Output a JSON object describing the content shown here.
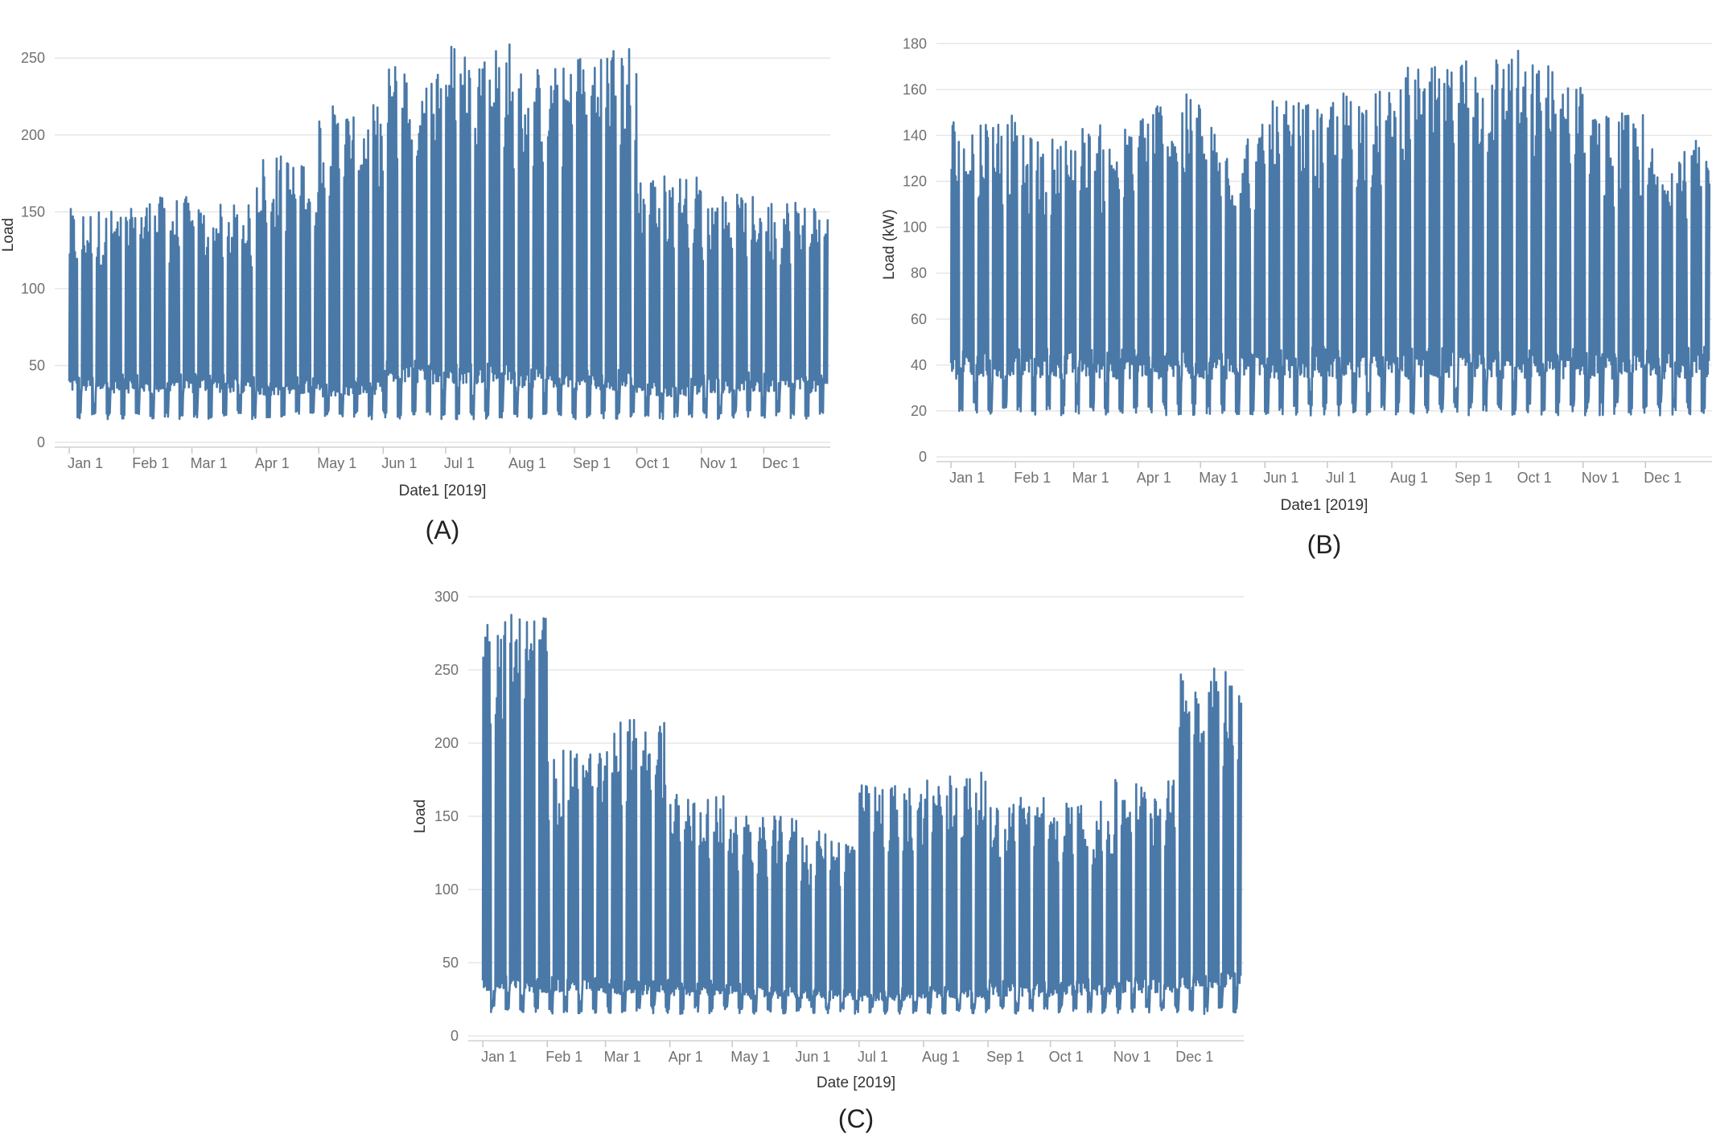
{
  "line_color": "#4a79a8",
  "grid_color": "#e6e6e6",
  "tick_text_color": "#707070",
  "axis_title_color": "#333333",
  "chart_data": [
    {
      "type": "line",
      "panel_label": "(A)",
      "xlabel": "Date1 [2019]",
      "ylabel": "Load",
      "ylim": [
        0,
        270
      ],
      "yticks": [
        0,
        50,
        100,
        150,
        200,
        250
      ],
      "xlim": [
        "2018-12-25",
        "2020-01-02"
      ],
      "xticks": [
        {
          "date": "2019-01-01",
          "label": "Jan 1"
        },
        {
          "date": "2019-02-01",
          "label": "Feb 1"
        },
        {
          "date": "2019-03-01",
          "label": "Mar 1"
        },
        {
          "date": "2019-04-01",
          "label": "Apr 1"
        },
        {
          "date": "2019-05-01",
          "label": "May 1"
        },
        {
          "date": "2019-06-01",
          "label": "Jun 1"
        },
        {
          "date": "2019-07-01",
          "label": "Jul 1"
        },
        {
          "date": "2019-08-01",
          "label": "Aug 1"
        },
        {
          "date": "2019-09-01",
          "label": "Sep 1"
        },
        {
          "date": "2019-10-01",
          "label": "Oct 1"
        },
        {
          "date": "2019-11-01",
          "label": "Nov 1"
        },
        {
          "date": "2019-12-01",
          "label": "Dec 1"
        }
      ],
      "grid": true,
      "series": [
        {
          "monthly_peak": [
            152,
            160,
            155,
            188,
            220,
            250,
            262,
            245,
            260,
            175,
            162,
            160
          ],
          "monthly_base": [
            38,
            38,
            38,
            36,
            35,
            45,
            45,
            42,
            40,
            35,
            38,
            38
          ],
          "weekend_min": 15
        }
      ]
    },
    {
      "type": "line",
      "panel_label": "(B)",
      "xlabel": "Date1 [2019]",
      "ylabel": "Load (kW)",
      "ylim": [
        0,
        185
      ],
      "yticks": [
        0,
        20,
        40,
        60,
        80,
        100,
        120,
        140,
        160,
        180
      ],
      "xlim": [
        "2018-12-25",
        "2020-01-02"
      ],
      "xticks": [
        {
          "date": "2019-01-01",
          "label": "Jan 1"
        },
        {
          "date": "2019-02-01",
          "label": "Feb 1"
        },
        {
          "date": "2019-03-01",
          "label": "Mar 1"
        },
        {
          "date": "2019-04-01",
          "label": "Apr 1"
        },
        {
          "date": "2019-05-01",
          "label": "May 1"
        },
        {
          "date": "2019-06-01",
          "label": "Jun 1"
        },
        {
          "date": "2019-07-01",
          "label": "Jul 1"
        },
        {
          "date": "2019-08-01",
          "label": "Aug 1"
        },
        {
          "date": "2019-09-01",
          "label": "Sep 1"
        },
        {
          "date": "2019-10-01",
          "label": "Oct 1"
        },
        {
          "date": "2019-11-01",
          "label": "Nov 1"
        },
        {
          "date": "2019-12-01",
          "label": "Dec 1"
        }
      ],
      "grid": true,
      "series": [
        {
          "monthly_peak": [
            150,
            140,
            145,
            158,
            145,
            155,
            160,
            170,
            178,
            172,
            150,
            138
          ],
          "monthly_base": [
            40,
            40,
            40,
            40,
            40,
            40,
            40,
            40,
            40,
            40,
            40,
            40
          ],
          "weekend_min": 18
        }
      ]
    },
    {
      "type": "line",
      "panel_label": "(C)",
      "xlabel": "Date [2019]",
      "ylabel": "Load",
      "ylim": [
        0,
        300
      ],
      "yticks": [
        0,
        50,
        100,
        150,
        200,
        250,
        300
      ],
      "xlim": [
        "2018-12-25",
        "2020-01-02"
      ],
      "xticks": [
        {
          "date": "2019-01-01",
          "label": "Jan 1"
        },
        {
          "date": "2019-02-01",
          "label": "Feb 1"
        },
        {
          "date": "2019-03-01",
          "label": "Mar 1"
        },
        {
          "date": "2019-04-01",
          "label": "Apr 1"
        },
        {
          "date": "2019-05-01",
          "label": "May 1"
        },
        {
          "date": "2019-06-01",
          "label": "Jun 1"
        },
        {
          "date": "2019-07-01",
          "label": "Jul 1"
        },
        {
          "date": "2019-08-01",
          "label": "Aug 1"
        },
        {
          "date": "2019-09-01",
          "label": "Sep 1"
        },
        {
          "date": "2019-10-01",
          "label": "Oct 1"
        },
        {
          "date": "2019-11-01",
          "label": "Nov 1"
        },
        {
          "date": "2019-12-01",
          "label": "Dec 1"
        }
      ],
      "grid": true,
      "series": [
        {
          "monthly_peak": [
            290,
            195,
            218,
            165,
            150,
            140,
            172,
            180,
            165,
            160,
            175,
            255
          ],
          "monthly_base": [
            35,
            35,
            33,
            32,
            30,
            28,
            28,
            30,
            32,
            33,
            35,
            38
          ],
          "weekend_min": 15
        }
      ]
    }
  ]
}
